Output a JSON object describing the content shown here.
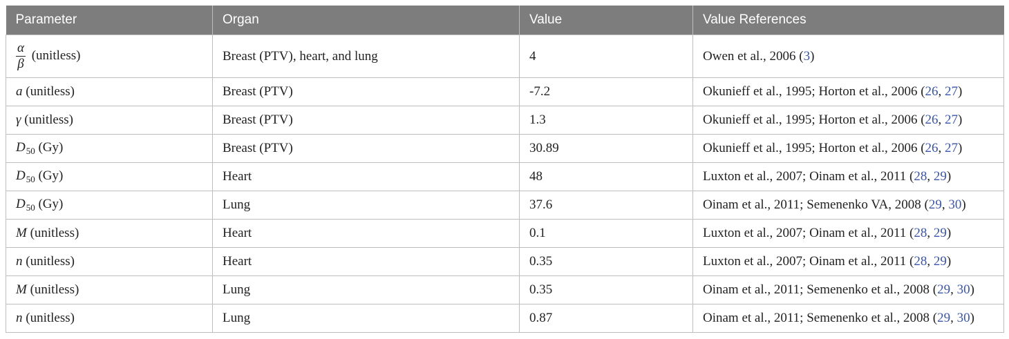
{
  "table": {
    "headers": [
      "Parameter",
      "Organ",
      "Value",
      "Value References"
    ],
    "rows": [
      {
        "param_kind": "fraction",
        "param_num": "α",
        "param_den": "β",
        "param_unit": "(unitless)",
        "organ": "Breast (PTV), heart, and lung",
        "value": "4",
        "ref_text": "Owen et al., 2006 (",
        "ref_links": [
          "3"
        ],
        "ref_close": ")"
      },
      {
        "param_kind": "symbol",
        "param_symbol": "a",
        "param_unit": "(unitless)",
        "organ": "Breast (PTV)",
        "value": "-7.2",
        "ref_text": "Okunieff et al., 1995; Horton et al., 2006 (",
        "ref_links": [
          "26",
          "27"
        ],
        "ref_close": ")"
      },
      {
        "param_kind": "symbol",
        "param_symbol": "γ",
        "param_unit": "(unitless)",
        "organ": "Breast (PTV)",
        "value": "1.3",
        "ref_text": "Okunieff et al., 1995; Horton et al., 2006 (",
        "ref_links": [
          "26",
          "27"
        ],
        "ref_close": ")"
      },
      {
        "param_kind": "subscript",
        "param_symbol": "D",
        "param_sub": "50",
        "param_unit": "(Gy)",
        "organ": "Breast (PTV)",
        "value": "30.89",
        "ref_text": "Okunieff et al., 1995; Horton et al., 2006 (",
        "ref_links": [
          "26",
          "27"
        ],
        "ref_close": ")"
      },
      {
        "param_kind": "subscript",
        "param_symbol": "D",
        "param_sub": "50",
        "param_unit": "(Gy)",
        "organ": "Heart",
        "value": "48",
        "ref_text": "Luxton et al., 2007; Oinam et al., 2011 (",
        "ref_links": [
          "28",
          "29"
        ],
        "ref_close": ")"
      },
      {
        "param_kind": "subscript",
        "param_symbol": "D",
        "param_sub": "50",
        "param_unit": "(Gy)",
        "organ": "Lung",
        "value": "37.6",
        "ref_text": "Oinam et al., 2011; Semenenko VA, 2008 (",
        "ref_links": [
          "29",
          "30"
        ],
        "ref_close": ")"
      },
      {
        "param_kind": "symbol",
        "param_symbol": "M",
        "param_unit": "(unitless)",
        "organ": "Heart",
        "value": "0.1",
        "ref_text": "Luxton et al., 2007; Oinam et al., 2011 (",
        "ref_links": [
          "28",
          "29"
        ],
        "ref_close": ")"
      },
      {
        "param_kind": "symbol",
        "param_symbol": "n",
        "param_unit": "(unitless)",
        "organ": "Heart",
        "value": "0.35",
        "ref_text": "Luxton et al., 2007; Oinam et al., 2011 (",
        "ref_links": [
          "28",
          "29"
        ],
        "ref_close": ")"
      },
      {
        "param_kind": "symbol",
        "param_symbol": "M",
        "param_unit": "(unitless)",
        "organ": "Lung",
        "value": "0.35",
        "ref_text": "Oinam et al., 2011; Semenenko et al., 2008 (",
        "ref_links": [
          "29",
          "30"
        ],
        "ref_close": ")"
      },
      {
        "param_kind": "symbol",
        "param_symbol": "n",
        "param_unit": "(unitless)",
        "organ": "Lung",
        "value": "0.87",
        "ref_text": "Oinam et al., 2011; Semenenko et al., 2008 (",
        "ref_links": [
          "29",
          "30"
        ],
        "ref_close": ")"
      }
    ]
  },
  "colors": {
    "header_bg": "#7d7d7d",
    "header_text": "#ffffff",
    "border": "#bdbdbd",
    "link": "#3a55a6"
  }
}
